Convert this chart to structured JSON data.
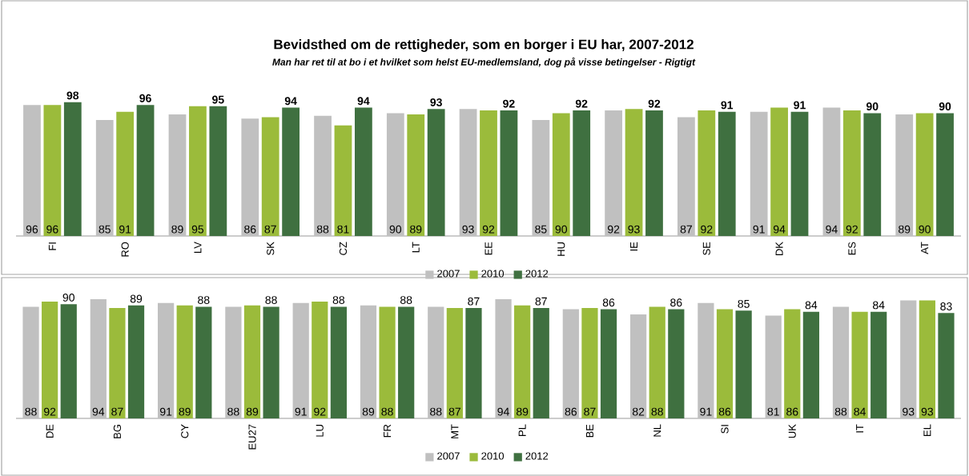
{
  "chart_data": [
    {
      "type": "bar",
      "title": "Bevidsthed om de rettigheder, som en borger i EU har, 2007-2012",
      "subtitle": "Man har ret til at bo i et hvilket som helst EU-medlemsland, dog på visse betingelser - Rigtigt",
      "categories": [
        "FI",
        "RO",
        "LV",
        "SK",
        "CZ",
        "LT",
        "EE",
        "HU",
        "IE",
        "SE",
        "DK",
        "ES",
        "AT"
      ],
      "data_labels": true,
      "legend": "bottom",
      "series": [
        {
          "name": "2007",
          "color": "#c0c0c0",
          "values": [
            96,
            85,
            89,
            86,
            88,
            90,
            93,
            85,
            92,
            87,
            91,
            94,
            89
          ]
        },
        {
          "name": "2010",
          "color": "#9bbb3b",
          "values": [
            96,
            91,
            95,
            87,
            81,
            89,
            92,
            90,
            93,
            92,
            94,
            92,
            90
          ]
        },
        {
          "name": "2012",
          "color": "#3f7040",
          "values": [
            98,
            96,
            95,
            94,
            94,
            93,
            92,
            92,
            92,
            91,
            91,
            90,
            90
          ]
        }
      ]
    },
    {
      "type": "bar",
      "categories": [
        "DE",
        "BG",
        "CY",
        "EU27",
        "LU",
        "FR",
        "MT",
        "PL",
        "BE",
        "NL",
        "SI",
        "UK",
        "IT",
        "EL"
      ],
      "data_labels": true,
      "legend": "bottom",
      "series": [
        {
          "name": "2007",
          "color": "#c0c0c0",
          "values": [
            88,
            94,
            91,
            88,
            91,
            89,
            88,
            94,
            86,
            82,
            91,
            81,
            88,
            93
          ]
        },
        {
          "name": "2010",
          "color": "#9bbb3b",
          "values": [
            92,
            87,
            89,
            89,
            92,
            88,
            87,
            89,
            87,
            88,
            86,
            86,
            84,
            93
          ]
        },
        {
          "name": "2012",
          "color": "#3f7040",
          "values": [
            90,
            89,
            88,
            88,
            88,
            88,
            87,
            87,
            86,
            86,
            85,
            84,
            84,
            83
          ]
        }
      ]
    }
  ]
}
